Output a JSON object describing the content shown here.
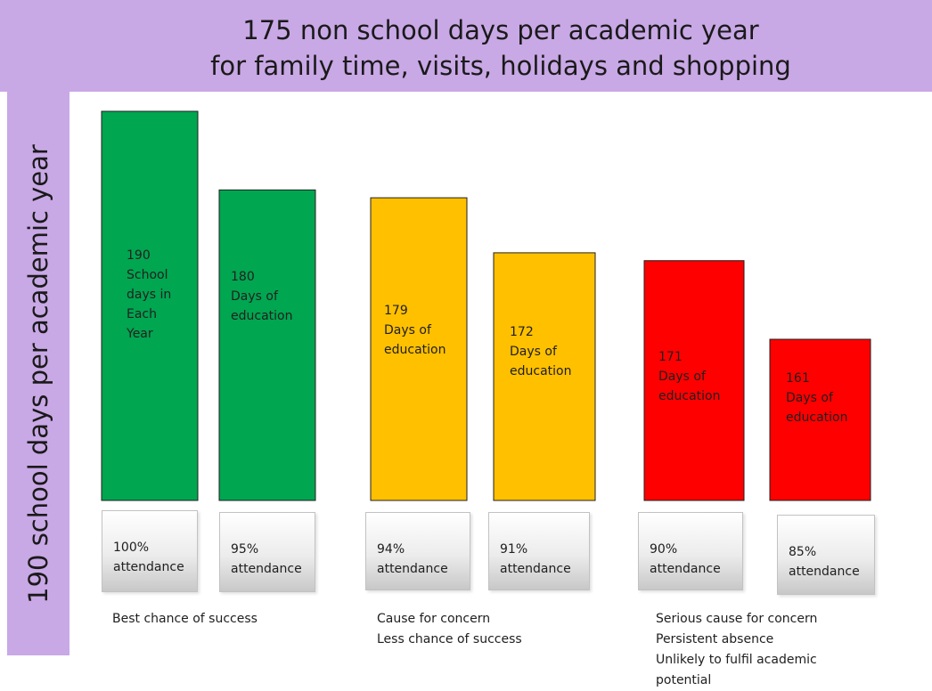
{
  "header": {
    "title_line1": "175 non school days per academic  year",
    "title_line2": "for family time, visits, holidays and shopping"
  },
  "side": {
    "title": "190 school days per academic year"
  },
  "colors": {
    "band": "#c9a8e6",
    "green": "#00a650",
    "amber": "#ffc000",
    "red": "#ff0000"
  },
  "chart_data": {
    "type": "bar",
    "title": "175 non school days per academic  year for family time, visits, holidays and shopping",
    "ylabel": "190 school days per academic year",
    "ylim": [
      0,
      190
    ],
    "categories": [
      "100% attendance",
      "95% attendance",
      "94% attendance",
      "91% attendance",
      "90% attendance",
      "85% attendance"
    ],
    "values": [
      190,
      180,
      179,
      172,
      171,
      161
    ],
    "bars": [
      {
        "value": 190,
        "label": "190\nSchool\ndays in\nEach\nYear",
        "attendance": "100%\nattendance",
        "color": "#00a650"
      },
      {
        "value": 180,
        "label": "180\nDays of\neducation",
        "attendance": "95%\nattendance",
        "color": "#00a650"
      },
      {
        "value": 179,
        "label": "179\nDays of\neducation",
        "attendance": "94%\nattendance",
        "color": "#ffc000"
      },
      {
        "value": 172,
        "label": "172\nDays of\neducation",
        "attendance": "91%\nattendance",
        "color": "#ffc000"
      },
      {
        "value": 171,
        "label": "171\nDays of\neducation",
        "attendance": "90%\nattendance",
        "color": "#ff0000"
      },
      {
        "value": 161,
        "label": "161\nDays of\neducation",
        "attendance": "85%\nattendance",
        "color": "#ff0000"
      }
    ],
    "groups": [
      {
        "lines": [
          "Best chance of success"
        ]
      },
      {
        "lines": [
          "Cause for concern",
          "Less chance of success"
        ]
      },
      {
        "lines": [
          "Serious cause for concern",
          "Persistent absence",
          "Unlikely to fulfil academic",
          "potential"
        ]
      }
    ]
  }
}
